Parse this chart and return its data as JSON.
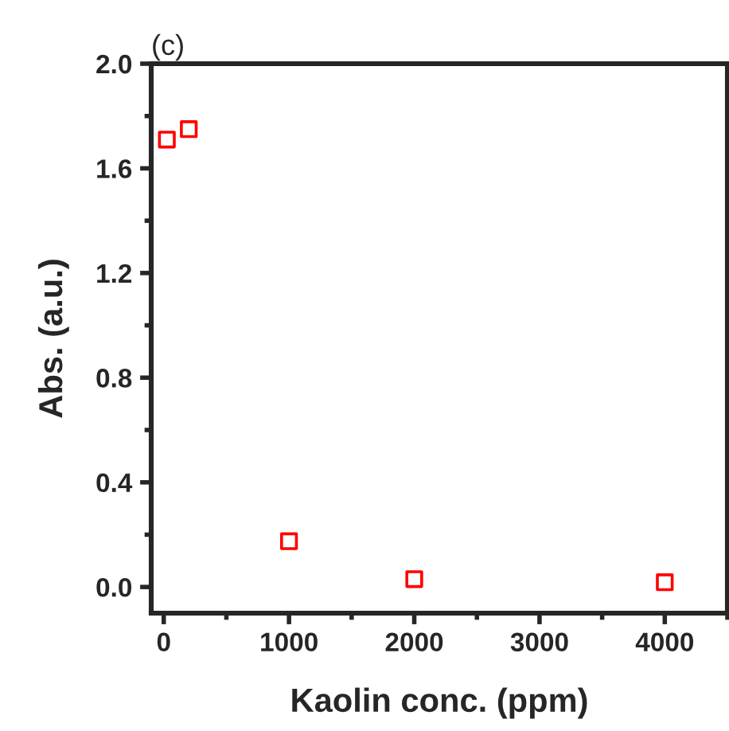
{
  "chart_data": {
    "type": "scatter",
    "title": "(c)",
    "xlabel": "Kaolin conc. (ppm)",
    "ylabel": "Abs. (a.u.)",
    "x": [
      25,
      200,
      1000,
      2000,
      4000
    ],
    "series": [
      {
        "color": "#ff0000",
        "values": [
          1.71,
          1.75,
          0.175,
          0.03,
          0.018
        ]
      }
    ],
    "marker": "square",
    "xlim": [
      -100,
      4500
    ],
    "ylim": [
      -0.1,
      2.0
    ],
    "xticks": [
      0,
      1000,
      2000,
      3000,
      4000
    ],
    "yticks": [
      {
        "value": 0.0,
        "label": "0.0"
      },
      0.4,
      0.8,
      1.2,
      1.6,
      {
        "value": 2.0,
        "label": "2.0"
      }
    ],
    "grid": false,
    "legend": false
  }
}
